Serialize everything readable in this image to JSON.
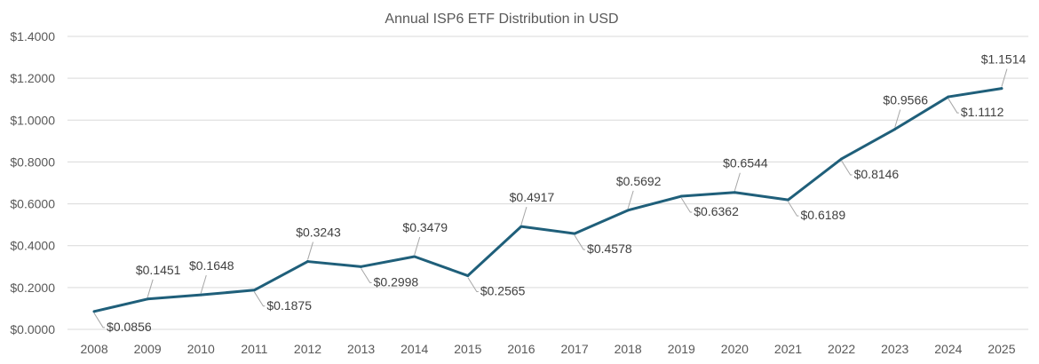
{
  "chart_data": {
    "type": "line",
    "title": "Annual ISP6 ETF Distribution in USD",
    "xlabel": "",
    "ylabel": "",
    "categories": [
      "2008",
      "2009",
      "2010",
      "2011",
      "2012",
      "2013",
      "2014",
      "2015",
      "2016",
      "2017",
      "2018",
      "2019",
      "2020",
      "2021",
      "2022",
      "2023",
      "2024",
      "2025"
    ],
    "series": [
      {
        "name": "Distribution",
        "color": "#1f5f7a",
        "values": [
          0.0856,
          0.1451,
          0.1648,
          0.1875,
          0.3243,
          0.2998,
          0.3479,
          0.2565,
          0.4917,
          0.4578,
          0.5692,
          0.6362,
          0.6544,
          0.6189,
          0.8146,
          0.9566,
          1.1112,
          1.1514
        ],
        "labels": [
          "$0.0856",
          "$0.1451",
          "$0.1648",
          "$0.1875",
          "$0.3243",
          "$0.2998",
          "$0.3479",
          "$0.2565",
          "$0.4917",
          "$0.4578",
          "$0.5692",
          "$0.6362",
          "$0.6544",
          "$0.6189",
          "$0.8146",
          "$0.9566",
          "$1.1112",
          "$1.1514"
        ],
        "label_side": [
          "below",
          "above",
          "above",
          "below",
          "above",
          "below",
          "above",
          "below",
          "above",
          "below",
          "above",
          "below",
          "above",
          "below",
          "below",
          "above",
          "below",
          "above"
        ]
      }
    ],
    "ylim": [
      0,
      1.4
    ],
    "yticks": [
      0,
      0.2,
      0.4,
      0.6,
      0.8,
      1.0,
      1.2,
      1.4
    ],
    "ytick_labels": [
      "$0.0000",
      "$0.2000",
      "$0.4000",
      "$0.6000",
      "$0.8000",
      "$1.0000",
      "$1.2000",
      "$1.4000"
    ],
    "grid": true,
    "legend": "none"
  }
}
